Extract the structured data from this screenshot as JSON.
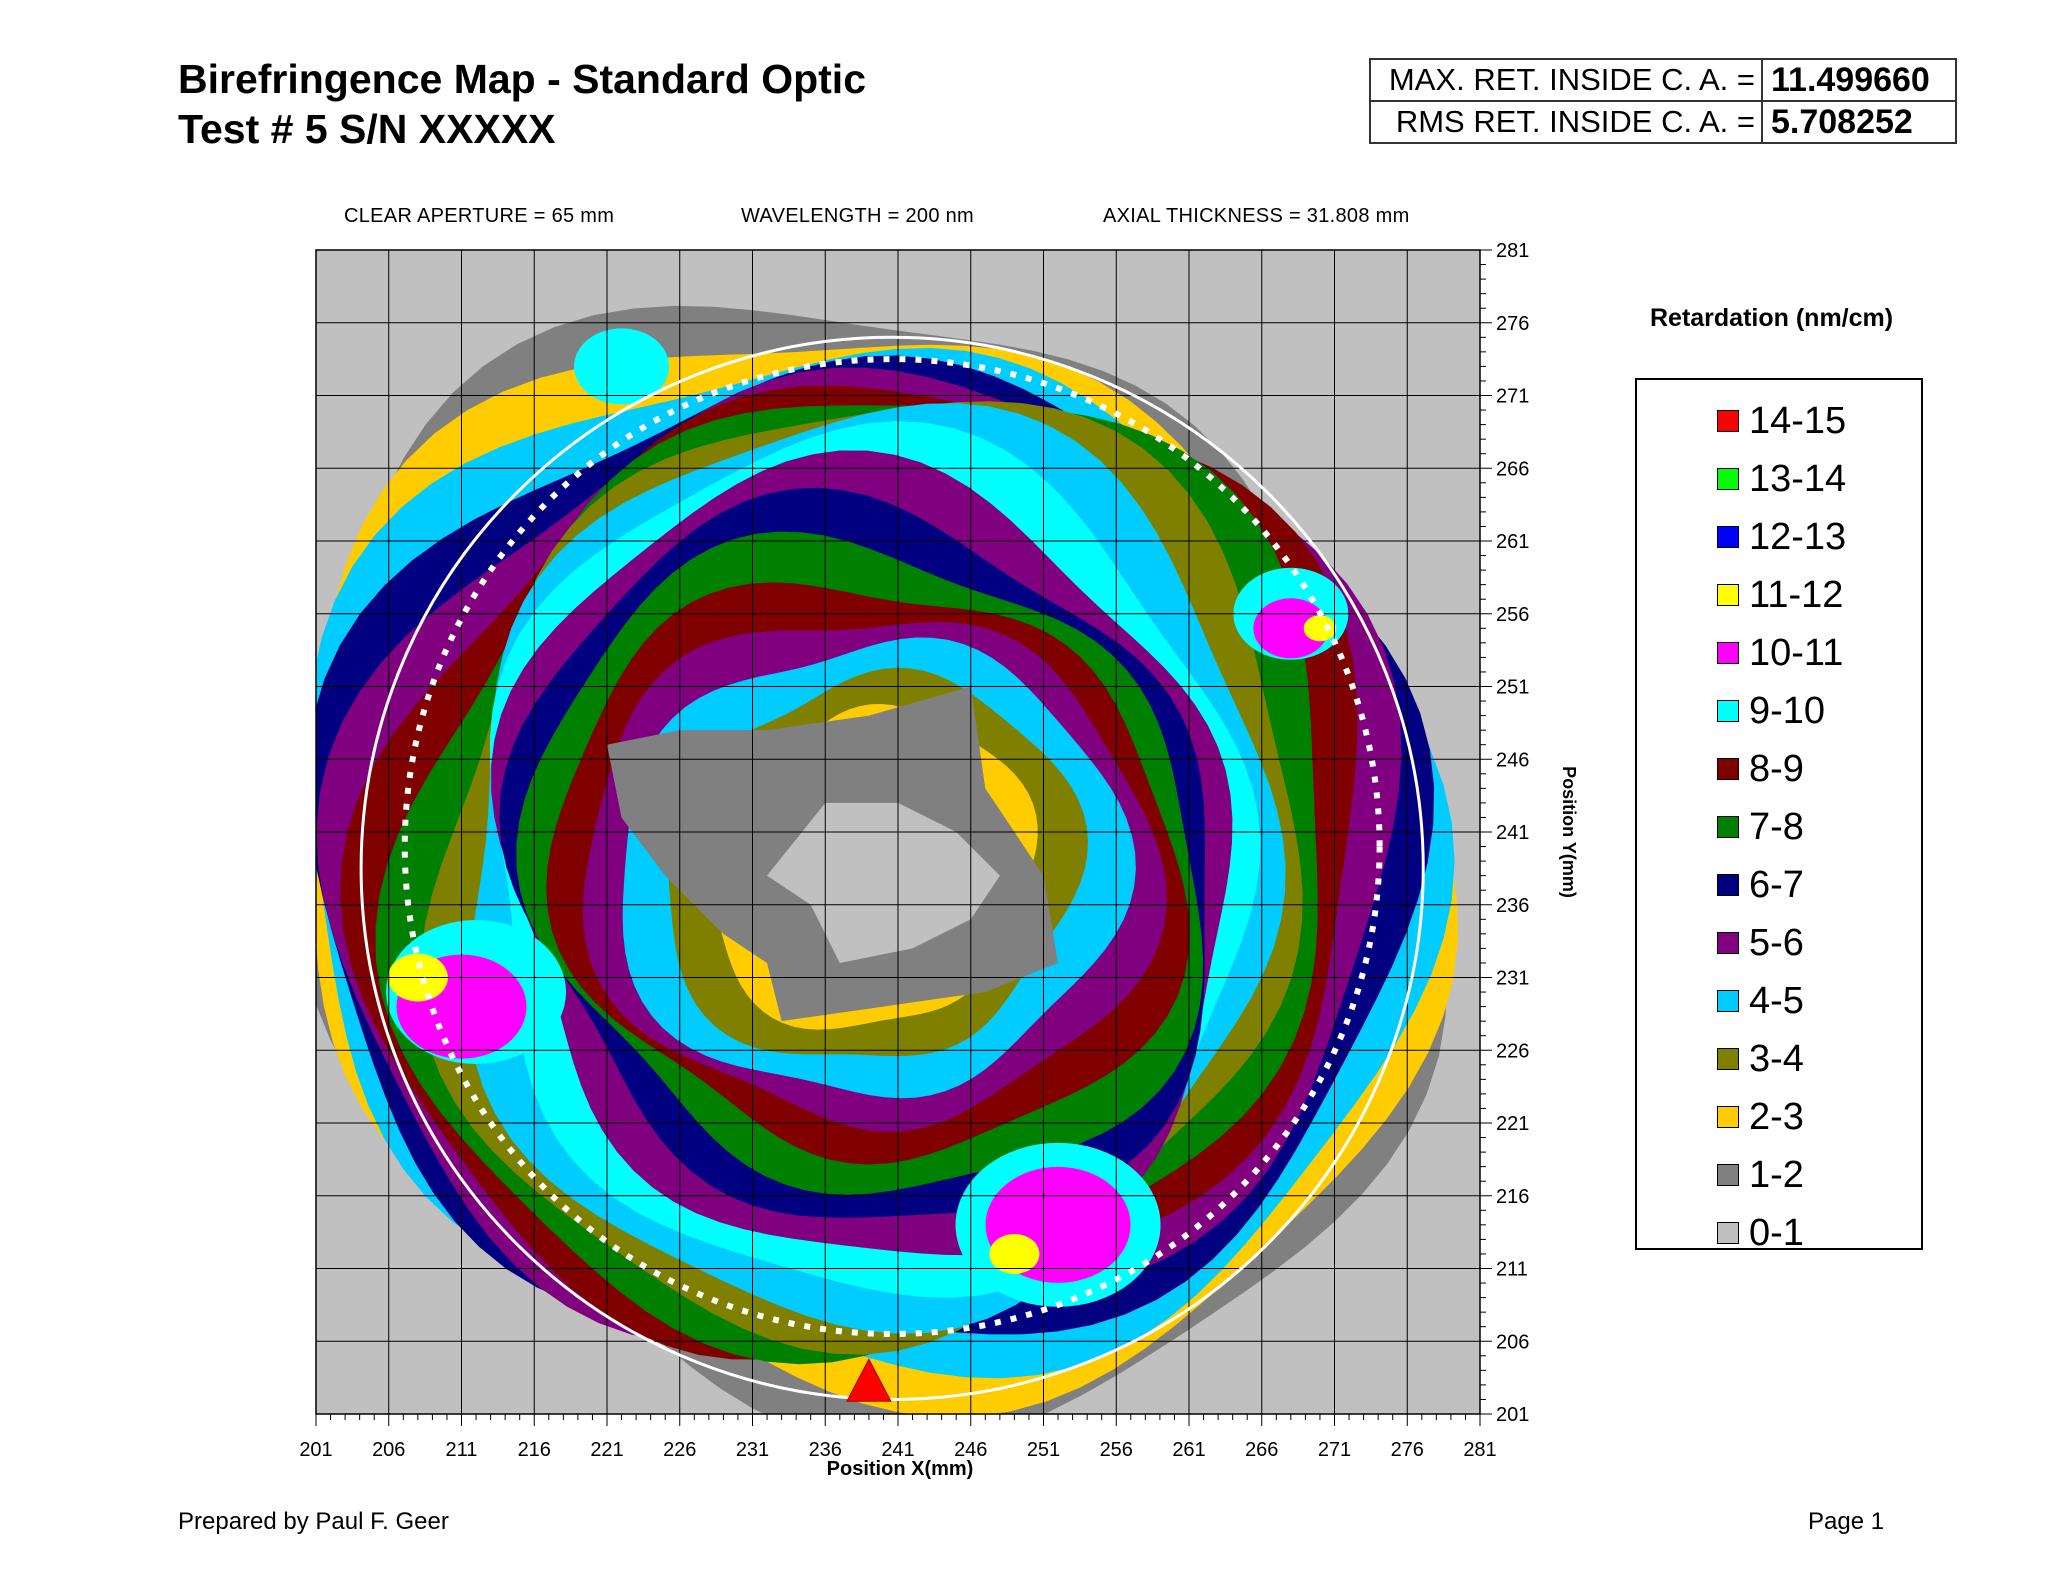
{
  "header": {
    "title_line1": "Birefringence Map - Standard Optic",
    "title_line2": "Test # 5 S/N XXXXX"
  },
  "stats": [
    {
      "label": "MAX. RET. INSIDE C. A. =",
      "value": "11.499660"
    },
    {
      "label": "RMS RET. INSIDE C. A. =",
      "value": "5.708252"
    }
  ],
  "params": {
    "clear_aperture": "CLEAR APERTURE = 65 mm",
    "wavelength": "WAVELENGTH = 200 nm",
    "axial_thickness": "AXIAL THICKNESS = 31.808 mm"
  },
  "footer": {
    "prepared_by": "Prepared by Paul F. Geer",
    "page": "Page 1"
  },
  "chart_data": {
    "type": "heatmap",
    "title": "",
    "xlabel": "Position X(mm)",
    "ylabel": "Position Y(mm)",
    "xlim": [
      201,
      281
    ],
    "ylim": [
      201,
      281
    ],
    "x_ticks": [
      201,
      206,
      211,
      216,
      221,
      226,
      231,
      236,
      241,
      246,
      251,
      256,
      261,
      266,
      271,
      276,
      281
    ],
    "y_ticks": [
      281,
      276,
      271,
      266,
      261,
      256,
      251,
      246,
      241,
      236,
      231,
      226,
      221,
      216,
      211,
      206,
      201
    ],
    "grid": true,
    "legend_title": "Retardation (nm/cm)",
    "legend_position": "right",
    "levels": [
      {
        "label": "14-15",
        "color": "#ff0000"
      },
      {
        "label": "13-14",
        "color": "#00ff00"
      },
      {
        "label": "12-13",
        "color": "#0000ff"
      },
      {
        "label": "11-12",
        "color": "#ffff00"
      },
      {
        "label": "10-11",
        "color": "#ff00ff"
      },
      {
        "label": "9-10",
        "color": "#00ffff"
      },
      {
        "label": "8-9",
        "color": "#800000"
      },
      {
        "label": "7-8",
        "color": "#008000"
      },
      {
        "label": "6-7",
        "color": "#000080"
      },
      {
        "label": "5-6",
        "color": "#800080"
      },
      {
        "label": "4-5",
        "color": "#00ccff"
      },
      {
        "label": "3-4",
        "color": "#808000"
      },
      {
        "label": "2-3",
        "color": "#ffcc00"
      },
      {
        "label": "1-2",
        "color": "#808080"
      },
      {
        "label": "0-1",
        "color": "#c0c0c0"
      }
    ],
    "clear_aperture_circle": {
      "center": [
        240.6,
        238.5
      ],
      "radius": 36.5
    },
    "inner_boundary_circle": {
      "center": [
        240.6,
        240
      ],
      "radius": 33.5
    },
    "marker": {
      "shape": "triangle",
      "x": 239,
      "y": 202.7,
      "color": "#ff0000"
    },
    "contour_bands": [
      {
        "level": "1-2",
        "points": [
          [
            239,
            249
          ],
          [
            246,
            251
          ],
          [
            247,
            244
          ],
          [
            251,
            238
          ],
          [
            252,
            232
          ],
          [
            247,
            230
          ],
          [
            240,
            229
          ],
          [
            233,
            228
          ],
          [
            232,
            232
          ],
          [
            229,
            234
          ],
          [
            225,
            238
          ],
          [
            222,
            242
          ],
          [
            221,
            247
          ],
          [
            226,
            248
          ],
          [
            232,
            248
          ]
        ]
      },
      {
        "level": "0-1",
        "points": [
          [
            236,
            243
          ],
          [
            241,
            243
          ],
          [
            245,
            241
          ],
          [
            248,
            238
          ],
          [
            246,
            235
          ],
          [
            242,
            233
          ],
          [
            237,
            232
          ],
          [
            235,
            236
          ],
          [
            232,
            238
          ]
        ]
      }
    ]
  }
}
